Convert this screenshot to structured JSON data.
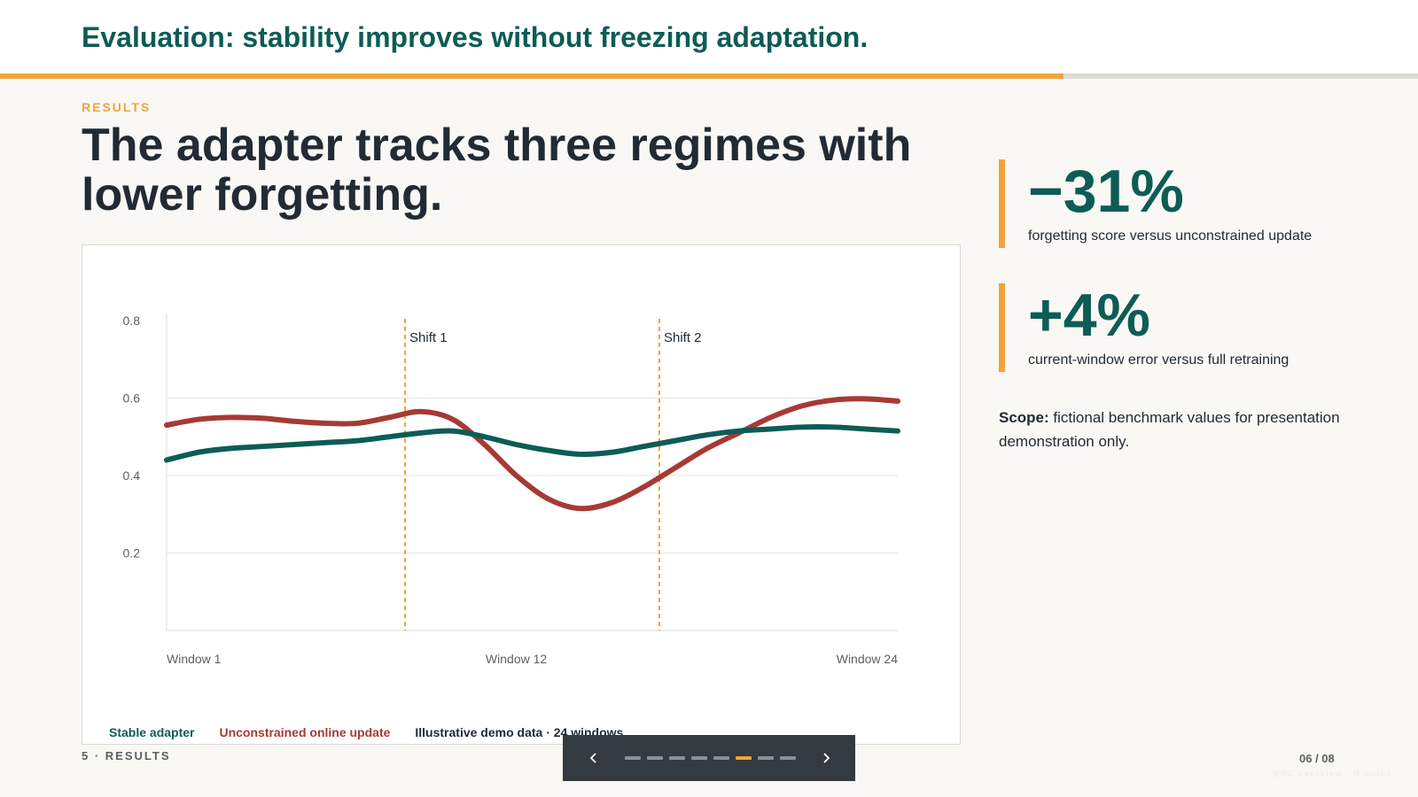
{
  "header": {
    "title": "Evaluation: stability improves without freezing adaptation.",
    "progress": 0.75
  },
  "kicker": "RESULTS",
  "headline": "The adapter tracks three regimes with lower forgetting.",
  "chart_data": {
    "type": "line",
    "x": [
      1,
      2,
      3,
      4,
      5,
      6,
      7,
      8,
      9,
      10,
      11,
      12,
      13,
      14,
      15,
      16,
      17,
      18,
      19,
      20,
      21,
      22,
      23,
      24
    ],
    "xlim": [
      1,
      24
    ],
    "x_tick_labels": [
      {
        "x": 1,
        "label": "Window 1"
      },
      {
        "x": 12,
        "label": "Window 12"
      },
      {
        "x": 24,
        "label": "Window 24"
      }
    ],
    "ylim": [
      0,
      0.8
    ],
    "y_ticks": [
      0.2,
      0.4,
      0.6,
      0.8
    ],
    "grid": true,
    "series": [
      {
        "name": "Stable adapter",
        "color": "#0d5c55",
        "values": [
          0.44,
          0.46,
          0.47,
          0.475,
          0.48,
          0.485,
          0.49,
          0.5,
          0.51,
          0.515,
          0.5,
          0.48,
          0.465,
          0.455,
          0.46,
          0.475,
          0.49,
          0.505,
          0.515,
          0.52,
          0.525,
          0.525,
          0.52,
          0.515
        ]
      },
      {
        "name": "Unconstrained online update",
        "color": "#a63a35",
        "values": [
          0.53,
          0.545,
          0.55,
          0.548,
          0.54,
          0.535,
          0.535,
          0.55,
          0.565,
          0.545,
          0.48,
          0.4,
          0.34,
          0.315,
          0.33,
          0.37,
          0.42,
          0.47,
          0.51,
          0.55,
          0.58,
          0.595,
          0.598,
          0.592
        ]
      }
    ],
    "annotations": [
      {
        "x": 8.5,
        "label": "Shift 1"
      },
      {
        "x": 16.5,
        "label": "Shift 2"
      }
    ],
    "note": "Illustrative demo data · 24 windows"
  },
  "stats": [
    {
      "value": "−31%",
      "label": "forgetting score versus unconstrained update"
    },
    {
      "value": "+4%",
      "label": "current-window error versus full retraining"
    }
  ],
  "scope": {
    "label": "Scope:",
    "text": "fictional benchmark values for presentation demonstration only."
  },
  "footer": {
    "section": "5 · RESULTS",
    "page": "06 / 08",
    "hint": "ESC overview · N notes"
  },
  "nav": {
    "slide_count": 8,
    "active_index": 5
  },
  "colors": {
    "accent": "#f0a43a",
    "teal": "#0d5c55",
    "red": "#a63a35"
  }
}
